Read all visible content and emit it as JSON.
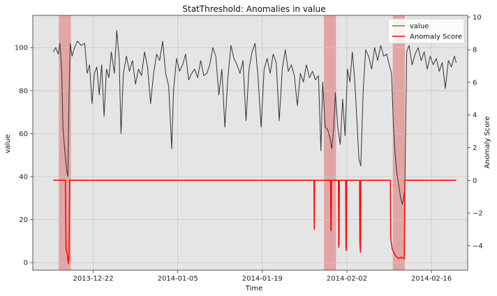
{
  "chart_data": {
    "type": "line",
    "title": "StatThreshold: Anomalies in value",
    "xlabel": "Time",
    "ylabel": "value",
    "ylabel_right": "Anomaly Score",
    "x_range": [
      "2013-12-12",
      "2014-02-22"
    ],
    "ylim": [
      -3.5,
      115
    ],
    "ylim_right": [
      -5.5,
      10.1
    ],
    "y_ticks": [
      0,
      20,
      40,
      60,
      80,
      100
    ],
    "y_ticks_right": [
      -4,
      -2,
      0,
      2,
      4,
      6,
      8,
      10
    ],
    "x_ticks": [
      {
        "date": "2013-12-22",
        "label": "2013-12-22"
      },
      {
        "date": "2014-01-05",
        "label": "2014-01-05"
      },
      {
        "date": "2014-01-19",
        "label": "2014-01-19"
      },
      {
        "date": "2014-02-02",
        "label": "2014-02-02"
      },
      {
        "date": "2014-02-16",
        "label": "2014-02-16"
      }
    ],
    "grid": true,
    "legend_position": "top-right",
    "legend": [
      {
        "label": "value",
        "color": "#333333"
      },
      {
        "label": "Anomaly Score",
        "color": "#ff0000"
      }
    ],
    "anomaly_spans": [
      {
        "start": "2013-12-16.3",
        "end": "2013-12-18.3"
      },
      {
        "start": "2014-01-29.2",
        "end": "2014-01-31.2"
      },
      {
        "start": "2014-02-09.6",
        "end": "2014-02-11.6"
      }
    ],
    "series": [
      {
        "name": "value",
        "axis": "left",
        "color": "#333333",
        "points": [
          [
            "2013-12-15.4",
            98
          ],
          [
            "2013-12-15.8",
            100
          ],
          [
            "2013-12-16.2",
            97
          ],
          [
            "2013-12-16.5",
            102
          ],
          [
            "2013-12-16.8",
            88
          ],
          [
            "2013-12-17.0",
            62
          ],
          [
            "2013-12-17.3",
            52
          ],
          [
            "2013-12-17.6",
            43
          ],
          [
            "2013-12-17.8",
            40
          ],
          [
            "2013-12-18.0",
            78
          ],
          [
            "2013-12-18.2",
            102
          ],
          [
            "2013-12-18.5",
            96
          ],
          [
            "2013-12-18.9",
            100
          ],
          [
            "2013-12-19.4",
            103
          ],
          [
            "2013-12-20.0",
            101
          ],
          [
            "2013-12-20.6",
            102
          ],
          [
            "2013-12-21.0",
            88
          ],
          [
            "2013-12-21.4",
            92
          ],
          [
            "2013-12-21.8",
            74
          ],
          [
            "2013-12-22.2",
            88
          ],
          [
            "2013-12-22.6",
            91
          ],
          [
            "2013-12-23.0",
            78
          ],
          [
            "2013-12-23.4",
            92
          ],
          [
            "2013-12-23.8",
            68
          ],
          [
            "2013-12-24.2",
            90
          ],
          [
            "2013-12-24.6",
            86
          ],
          [
            "2013-12-25.0",
            98
          ],
          [
            "2013-12-25.5",
            88
          ],
          [
            "2013-12-25.9",
            108
          ],
          [
            "2013-12-26.3",
            95
          ],
          [
            "2013-12-26.6",
            60
          ],
          [
            "2013-12-27.0",
            88
          ],
          [
            "2013-12-27.5",
            96
          ],
          [
            "2013-12-28.0",
            89
          ],
          [
            "2013-12-28.5",
            94
          ],
          [
            "2013-12-29.0",
            83
          ],
          [
            "2013-12-29.5",
            90
          ],
          [
            "2013-12-30.0",
            87
          ],
          [
            "2013-12-30.5",
            98
          ],
          [
            "2013-12-31.0",
            91
          ],
          [
            "2013-12-31.5",
            74
          ],
          [
            "2014-01-01.0",
            88
          ],
          [
            "2014-01-01.5",
            97
          ],
          [
            "2014-01-02.0",
            94
          ],
          [
            "2014-01-02.5",
            103
          ],
          [
            "2014-01-03.0",
            88
          ],
          [
            "2014-01-03.5",
            82
          ],
          [
            "2014-01-04.0",
            53
          ],
          [
            "2014-01-04.3",
            80
          ],
          [
            "2014-01-04.8",
            95
          ],
          [
            "2014-01-05.3",
            89
          ],
          [
            "2014-01-05.8",
            92
          ],
          [
            "2014-01-06.3",
            97
          ],
          [
            "2014-01-06.8",
            85
          ],
          [
            "2014-01-07.3",
            88
          ],
          [
            "2014-01-07.8",
            90
          ],
          [
            "2014-01-08.3",
            86
          ],
          [
            "2014-01-08.8",
            94
          ],
          [
            "2014-01-09.3",
            87
          ],
          [
            "2014-01-09.8",
            88
          ],
          [
            "2014-01-10.3",
            92
          ],
          [
            "2014-01-10.8",
            100
          ],
          [
            "2014-01-11.3",
            96
          ],
          [
            "2014-01-11.8",
            78
          ],
          [
            "2014-01-12.3",
            90
          ],
          [
            "2014-01-12.8",
            63
          ],
          [
            "2014-01-13.3",
            86
          ],
          [
            "2014-01-13.8",
            101
          ],
          [
            "2014-01-14.3",
            95
          ],
          [
            "2014-01-14.8",
            92
          ],
          [
            "2014-01-15.3",
            88
          ],
          [
            "2014-01-15.8",
            94
          ],
          [
            "2014-01-16.3",
            66
          ],
          [
            "2014-01-16.8",
            90
          ],
          [
            "2014-01-17.3",
            98
          ],
          [
            "2014-01-17.8",
            102
          ],
          [
            "2014-01-18.3",
            86
          ],
          [
            "2014-01-18.8",
            63
          ],
          [
            "2014-01-19.3",
            90
          ],
          [
            "2014-01-19.8",
            95
          ],
          [
            "2014-01-20.3",
            88
          ],
          [
            "2014-01-20.8",
            97
          ],
          [
            "2014-01-21.3",
            93
          ],
          [
            "2014-01-21.8",
            66
          ],
          [
            "2014-01-22.3",
            90
          ],
          [
            "2014-01-22.8",
            99
          ],
          [
            "2014-01-23.3",
            89
          ],
          [
            "2014-01-23.8",
            92
          ],
          [
            "2014-01-24.3",
            87
          ],
          [
            "2014-01-24.8",
            73
          ],
          [
            "2014-01-25.3",
            88
          ],
          [
            "2014-01-25.8",
            84
          ],
          [
            "2014-01-26.3",
            92
          ],
          [
            "2014-01-26.8",
            86
          ],
          [
            "2014-01-27.3",
            89
          ],
          [
            "2014-01-27.8",
            85
          ],
          [
            "2014-01-28.3",
            87
          ],
          [
            "2014-01-28.7",
            52
          ],
          [
            "2014-01-29.0",
            84
          ],
          [
            "2014-01-29.4",
            63
          ],
          [
            "2014-01-29.8",
            62
          ],
          [
            "2014-01-30.2",
            58
          ],
          [
            "2014-01-30.5",
            53
          ],
          [
            "2014-01-30.8",
            62
          ],
          [
            "2014-01-31.1",
            79
          ],
          [
            "2014-01-31.5",
            63
          ],
          [
            "2014-01-31.9",
            55
          ],
          [
            "2014-02-01.3",
            76
          ],
          [
            "2014-02-01.7",
            59
          ],
          [
            "2014-02-02.1",
            90
          ],
          [
            "2014-02-02.5",
            84
          ],
          [
            "2014-02-02.9",
            98
          ],
          [
            "2014-02-03.3",
            85
          ],
          [
            "2014-02-03.7",
            64
          ],
          [
            "2014-02-04.0",
            48
          ],
          [
            "2014-02-04.3",
            45
          ],
          [
            "2014-02-04.7",
            80
          ],
          [
            "2014-02-05.1",
            99
          ],
          [
            "2014-02-05.6",
            96
          ],
          [
            "2014-02-06.1",
            90
          ],
          [
            "2014-02-06.6",
            100
          ],
          [
            "2014-02-07.1",
            94
          ],
          [
            "2014-02-07.6",
            101
          ],
          [
            "2014-02-08.1",
            96
          ],
          [
            "2014-02-08.6",
            97
          ],
          [
            "2014-02-09.0",
            92
          ],
          [
            "2014-02-09.4",
            88
          ],
          [
            "2014-02-09.7",
            64
          ],
          [
            "2014-02-10.0",
            50
          ],
          [
            "2014-02-10.3",
            41
          ],
          [
            "2014-02-10.6",
            36
          ],
          [
            "2014-02-10.9",
            30
          ],
          [
            "2014-02-11.2",
            27
          ],
          [
            "2014-02-11.6",
            34
          ],
          [
            "2014-02-11.9",
            98
          ],
          [
            "2014-02-12.3",
            101
          ],
          [
            "2014-02-12.8",
            92
          ],
          [
            "2014-02-13.3",
            97
          ],
          [
            "2014-02-13.8",
            100
          ],
          [
            "2014-02-14.3",
            94
          ],
          [
            "2014-02-14.8",
            98
          ],
          [
            "2014-02-15.3",
            90
          ],
          [
            "2014-02-15.8",
            96
          ],
          [
            "2014-02-16.3",
            92
          ],
          [
            "2014-02-16.8",
            95
          ],
          [
            "2014-02-17.3",
            89
          ],
          [
            "2014-02-17.8",
            93
          ],
          [
            "2014-02-18.3",
            81
          ],
          [
            "2014-02-18.8",
            94
          ],
          [
            "2014-02-19.3",
            91
          ],
          [
            "2014-02-19.8",
            96
          ],
          [
            "2014-02-20.1",
            93
          ]
        ]
      },
      {
        "name": "Anomaly Score",
        "axis": "right",
        "color": "#ff0000",
        "points": [
          [
            "2013-12-15.4",
            0
          ],
          [
            "2013-12-17.4",
            0
          ],
          [
            "2013-12-17.5",
            -4.2
          ],
          [
            "2013-12-17.7",
            -4.5
          ],
          [
            "2013-12-17.9",
            -5.1
          ],
          [
            "2013-12-18.0",
            -4.5
          ],
          [
            "2013-12-18.1",
            0
          ],
          [
            "2014-01-27.55",
            0
          ],
          [
            "2014-01-27.6",
            -3.0
          ],
          [
            "2014-01-27.65",
            0
          ],
          [
            "2014-01-30.3",
            0
          ],
          [
            "2014-01-30.35",
            -3.0
          ],
          [
            "2014-01-30.4",
            -3.1
          ],
          [
            "2014-01-30.45",
            0
          ],
          [
            "2014-01-31.6",
            0
          ],
          [
            "2014-01-31.65",
            -4.1
          ],
          [
            "2014-01-31.7",
            -3.9
          ],
          [
            "2014-01-31.75",
            0
          ],
          [
            "2014-02-01.8",
            0
          ],
          [
            "2014-02-01.85",
            -4.1
          ],
          [
            "2014-02-01.9",
            -4.3
          ],
          [
            "2014-02-01.95",
            0
          ],
          [
            "2014-02-04.1",
            0
          ],
          [
            "2014-02-04.15",
            -3.8
          ],
          [
            "2014-02-04.25",
            -4.4
          ],
          [
            "2014-02-04.3",
            0
          ],
          [
            "2014-02-09.2",
            0
          ],
          [
            "2014-02-09.25",
            -3.5
          ],
          [
            "2014-02-09.5",
            -4.2
          ],
          [
            "2014-02-10.0",
            -4.6
          ],
          [
            "2014-02-10.6",
            -4.8
          ],
          [
            "2014-02-11.0",
            -4.7
          ],
          [
            "2014-02-11.5",
            -4.8
          ],
          [
            "2014-02-11.6",
            0
          ],
          [
            "2014-02-20.1",
            0
          ]
        ]
      }
    ]
  }
}
